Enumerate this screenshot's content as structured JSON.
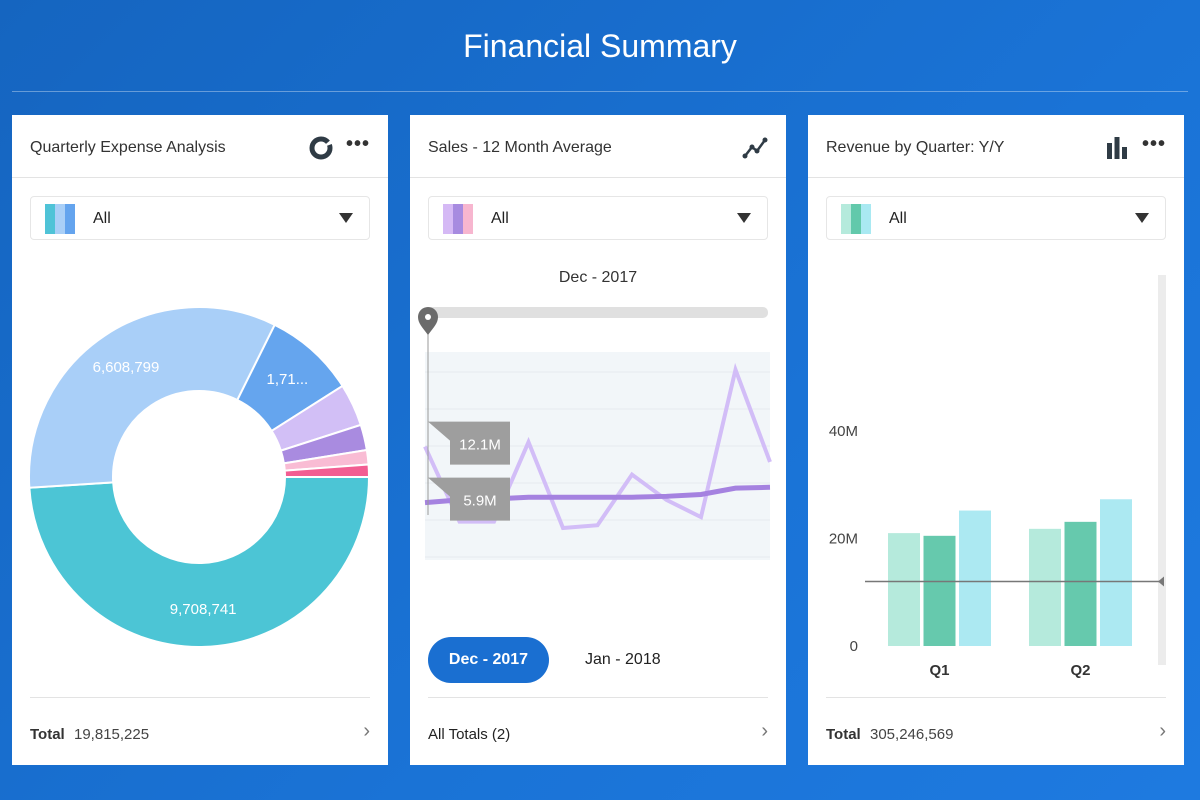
{
  "header": {
    "title": "Financial Summary"
  },
  "cards": [
    {
      "title": "Quarterly Expense Analysis",
      "icon": "donut-chart-icon",
      "filter": "All",
      "swatch": [
        "#4fc3d7",
        "#a9cff7",
        "#64a4ee"
      ],
      "footer_label": "Total",
      "footer_value": "19,815,225"
    },
    {
      "title": "Sales - 12 Month Average",
      "icon": "line-chart-icon",
      "filter": "All",
      "swatch": [
        "#d5b9f5",
        "#a78be0",
        "#f7b6cf"
      ],
      "period": "Dec - 2017",
      "selected_period": "Dec - 2017",
      "other_period": "Jan - 2018",
      "footer_label": "All Totals (2)"
    },
    {
      "title": "Revenue by Quarter: Y/Y",
      "icon": "bar-chart-icon",
      "filter": "All",
      "swatch": [
        "#b5eadc",
        "#62c9ab",
        "#a9e9f2"
      ],
      "footer_label": "Total",
      "footer_value": "305,246,569"
    }
  ],
  "chart_data": [
    {
      "type": "pie",
      "donut": true,
      "slices": [
        {
          "value": 9708741,
          "label": "9,708,741",
          "color": "#4cc5d5"
        },
        {
          "value": 6608799,
          "label": "6,608,799",
          "color": "#a9cff8"
        },
        {
          "value": 1715000,
          "label": "1,71...",
          "color": "#65a5ee"
        },
        {
          "value": 800000,
          "label": "",
          "color": "#d2bff6"
        },
        {
          "value": 480000,
          "label": "",
          "color": "#a98be0"
        },
        {
          "value": 270000,
          "label": "",
          "color": "#f9bcd4"
        },
        {
          "value": 232685,
          "label": "",
          "color": "#f25d92"
        }
      ]
    },
    {
      "type": "line",
      "x": [
        "1",
        "2",
        "3",
        "4",
        "5",
        "6",
        "7",
        "8",
        "9",
        "10",
        "11"
      ],
      "series": [
        {
          "values": [
            12.1,
            3.8,
            3.8,
            12.6,
            3.1,
            3.4,
            9.0,
            6.2,
            4.3,
            20.6,
            10.4
          ],
          "color": "#d2bdf7"
        },
        {
          "values": [
            5.9,
            6.2,
            6.3,
            6.5,
            6.5,
            6.5,
            6.5,
            6.6,
            6.8,
            7.5,
            7.6
          ],
          "color": "#a582e0"
        }
      ],
      "ylim": [
        0,
        23
      ],
      "tooltips": [
        "12.1M",
        "5.9M"
      ]
    },
    {
      "type": "bar",
      "categories": [
        "Q1",
        "Q2"
      ],
      "series": [
        {
          "values": [
            21.0,
            21.8
          ],
          "color": "#b5eadc"
        },
        {
          "values": [
            20.5,
            23.1
          ],
          "color": "#66c9ad"
        },
        {
          "values": [
            25.2,
            27.3
          ],
          "color": "#ace9f2"
        }
      ],
      "yticks": [
        "0",
        "20M",
        "40M"
      ],
      "ytick_values": [
        0,
        20,
        40
      ],
      "ylim": [
        0,
        40
      ],
      "reference_line": 12
    }
  ]
}
